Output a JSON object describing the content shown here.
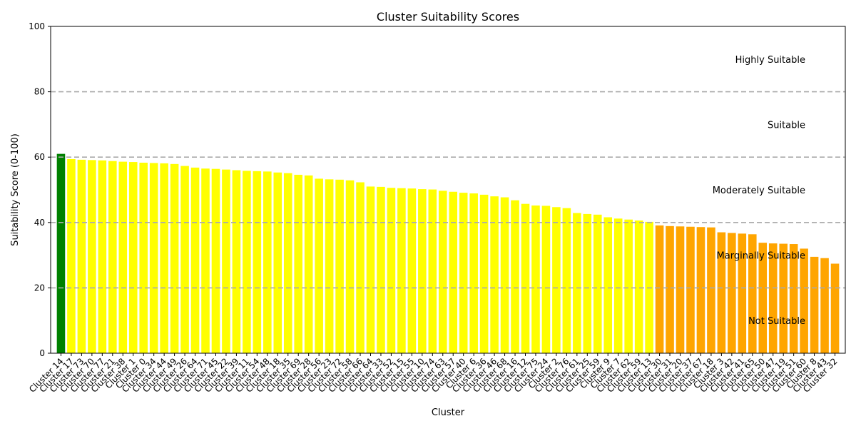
{
  "chart_data": {
    "type": "bar",
    "title": "Cluster Suitability Scores",
    "xlabel": "Cluster",
    "ylabel": "Suitability Score (0-100)",
    "ylim": [
      0,
      100
    ],
    "yticks": [
      0,
      20,
      40,
      60,
      80,
      100
    ],
    "reference_lines": [
      20,
      40,
      60,
      80
    ],
    "categories": [
      "Cluster 14",
      "Cluster 17",
      "Cluster 73",
      "Cluster 70",
      "Cluster 77",
      "Cluster 21",
      "Cluster 38",
      "Cluster 1",
      "Cluster 0",
      "Cluster 34",
      "Cluster 44",
      "Cluster 49",
      "Cluster 26",
      "Cluster 64",
      "Cluster 71",
      "Cluster 45",
      "Cluster 22",
      "Cluster 39",
      "Cluster 11",
      "Cluster 54",
      "Cluster 48",
      "Cluster 18",
      "Cluster 35",
      "Cluster 69",
      "Cluster 28",
      "Cluster 56",
      "Cluster 23",
      "Cluster 72",
      "Cluster 58",
      "Cluster 66",
      "Cluster 64",
      "Cluster 33",
      "Cluster 52",
      "Cluster 15",
      "Cluster 55",
      "Cluster 10",
      "Cluster 74",
      "Cluster 63",
      "Cluster 57",
      "Cluster 40",
      "Cluster 6",
      "Cluster 36",
      "Cluster 46",
      "Cluster 68",
      "Cluster 16",
      "Cluster 12",
      "Cluster 75",
      "Cluster 24",
      "Cluster 2",
      "Cluster 76",
      "Cluster 61",
      "Cluster 25",
      "Cluster 59",
      "Cluster 9",
      "Cluster 7",
      "Cluster 62",
      "Cluster 59",
      "Cluster 13",
      "Cluster 30",
      "Cluster 31",
      "Cluster 20",
      "Cluster 37",
      "Cluster 67",
      "Cluster 18",
      "Cluster 3",
      "Cluster 42",
      "Cluster 41",
      "Cluster 65",
      "Cluster 50",
      "Cluster 47",
      "Cluster 19",
      "Cluster 51",
      "Cluster 60",
      "Cluster 8",
      "Cluster 43",
      "Cluster 32"
    ],
    "values": [
      61.0,
      59.4,
      59.2,
      59.1,
      59.0,
      58.8,
      58.6,
      58.5,
      58.3,
      58.2,
      58.1,
      57.9,
      57.3,
      56.8,
      56.5,
      56.4,
      56.2,
      56.0,
      55.8,
      55.7,
      55.6,
      55.3,
      55.1,
      54.6,
      54.4,
      53.4,
      53.2,
      53.1,
      52.9,
      52.3,
      51.0,
      50.9,
      50.6,
      50.5,
      50.4,
      50.2,
      50.1,
      49.7,
      49.4,
      49.1,
      48.9,
      48.5,
      48.0,
      47.7,
      46.8,
      45.7,
      45.2,
      45.1,
      44.7,
      44.4,
      42.9,
      42.6,
      42.4,
      41.6,
      41.2,
      40.9,
      40.6,
      40.2,
      39.1,
      38.9,
      38.8,
      38.7,
      38.6,
      38.5,
      37.0,
      36.8,
      36.6,
      36.4,
      33.8,
      33.6,
      33.5,
      33.4,
      32.0,
      29.5,
      29.1,
      27.4
    ],
    "threshold_colors": {
      "highly_suitable": "#008000",
      "suitable": "#008000",
      "moderately_suitable": "#ffff00",
      "marginally_suitable": "#ffa500",
      "not_suitable": "#ff0000"
    },
    "band_labels": [
      {
        "text": "Highly Suitable",
        "y": 90
      },
      {
        "text": "Suitable",
        "y": 70
      },
      {
        "text": "Moderately Suitable",
        "y": 50
      },
      {
        "text": "Marginally Suitable",
        "y": 30
      },
      {
        "text": "Not Suitable",
        "y": 10
      }
    ],
    "grid": false,
    "reference_line_color": "#aaaaaa"
  }
}
